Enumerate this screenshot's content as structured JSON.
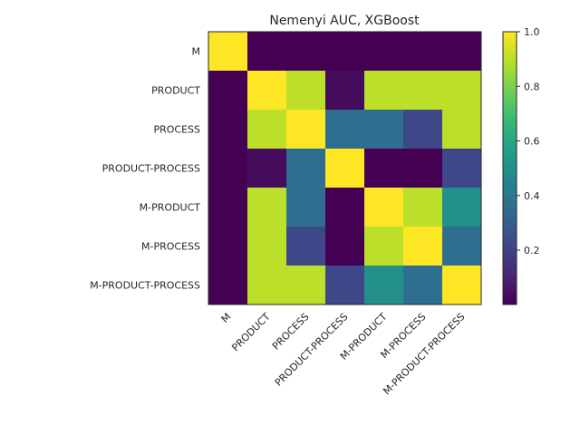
{
  "chart_data": {
    "type": "heatmap",
    "title": "Nemenyi AUC, XGBoost",
    "xlabel": "",
    "ylabel": "",
    "row_labels": [
      "M",
      "PRODUCT",
      "PROCESS",
      "PRODUCT-PROCESS",
      "M-PRODUCT",
      "M-PROCESS",
      "M-PRODUCT-PROCESS"
    ],
    "col_labels": [
      "M",
      "PRODUCT",
      "PROCESS",
      "PRODUCT-PROCESS",
      "M-PRODUCT",
      "M-PROCESS",
      "M-PRODUCT-PROCESS"
    ],
    "values": [
      [
        1.0,
        0.001,
        0.001,
        0.001,
        0.001,
        0.001,
        0.001
      ],
      [
        0.001,
        1.0,
        0.9,
        0.03,
        0.9,
        0.9,
        0.9
      ],
      [
        0.001,
        0.9,
        1.0,
        0.36,
        0.36,
        0.22,
        0.9
      ],
      [
        0.001,
        0.03,
        0.36,
        1.0,
        0.001,
        0.001,
        0.22
      ],
      [
        0.001,
        0.9,
        0.36,
        0.001,
        1.0,
        0.9,
        0.5
      ],
      [
        0.001,
        0.9,
        0.22,
        0.001,
        0.9,
        1.0,
        0.36
      ],
      [
        0.001,
        0.9,
        0.9,
        0.22,
        0.5,
        0.36,
        1.0
      ]
    ],
    "colormap": "viridis",
    "colorbar": {
      "vmin": 0.001,
      "vmax": 1.0,
      "ticks": [
        "0.2",
        "0.4",
        "0.6",
        "0.8",
        "1.0"
      ],
      "tick_values": [
        0.2,
        0.4,
        0.6,
        0.8,
        1.0
      ]
    },
    "grid": false
  }
}
